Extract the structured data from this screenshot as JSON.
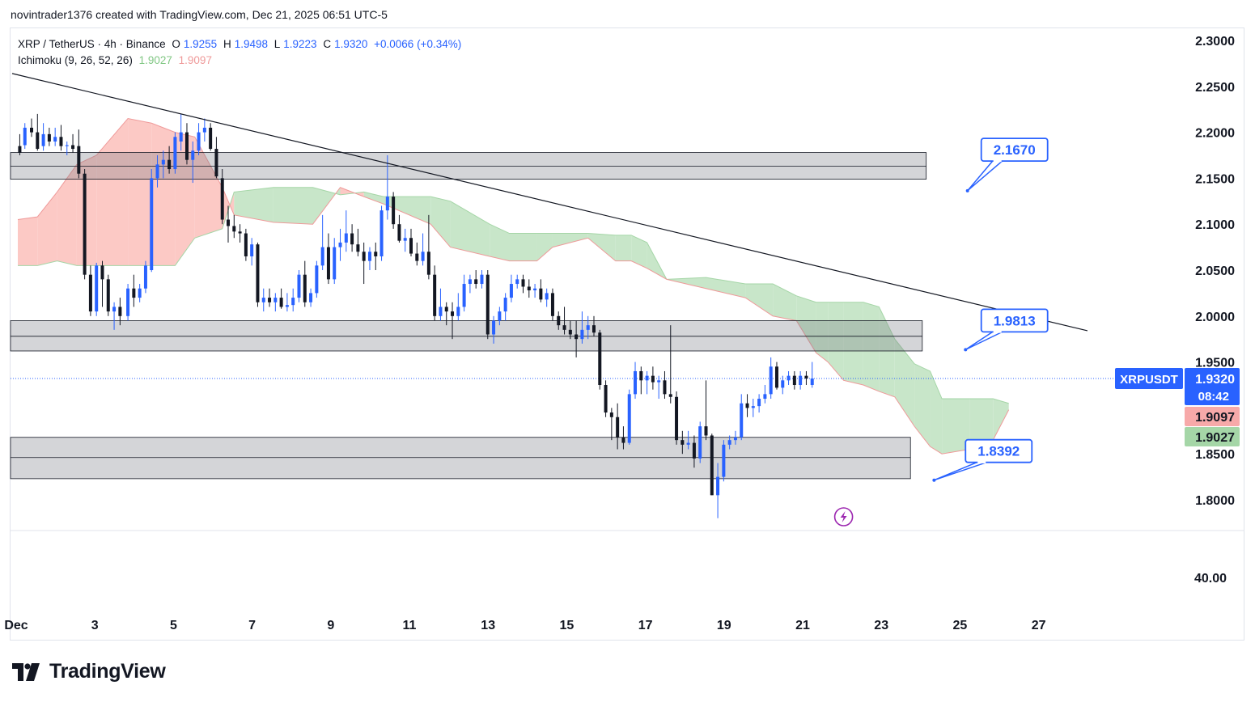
{
  "header": {
    "credit": "novintrader1376 created with TradingView.com, Dec 21, 2025 06:51 UTC-5"
  },
  "legend": {
    "symbol": "XRP / TetherUS · 4h · Binance",
    "o_label": "O",
    "o_val": "1.9255",
    "h_label": "H",
    "h_val": "1.9498",
    "l_label": "L",
    "l_val": "1.9223",
    "c_label": "C",
    "c_val": "1.9320",
    "change": "+0.0066 (+0.34%)",
    "ichimoku_label": "Ichimoku (9, 26, 52, 26)",
    "ichimoku_a": "1.9027",
    "ichimoku_b": "1.9097"
  },
  "brand": {
    "name": "TradingView"
  },
  "colors": {
    "up": "#2962ff",
    "down": "#131722",
    "cloud_bull": "#c8e6c9",
    "cloud_bear": "#fcc9c5",
    "accent": "#2962ff"
  },
  "chart_data": {
    "type": "candlestick",
    "symbol": "XRPUSDT",
    "timeframe": "4h",
    "ylim": [
      1.77,
      2.32
    ],
    "y_ticks": [
      "2.3000",
      "2.2500",
      "2.2000",
      "2.1500",
      "2.1000",
      "2.0500",
      "2.0000",
      "1.9500",
      "1.8500",
      "1.8000"
    ],
    "x_ticks": [
      {
        "label": "Dec",
        "day": 1
      },
      {
        "label": "3",
        "day": 3
      },
      {
        "label": "5",
        "day": 5
      },
      {
        "label": "7",
        "day": 7
      },
      {
        "label": "9",
        "day": 9
      },
      {
        "label": "11",
        "day": 11
      },
      {
        "label": "13",
        "day": 13
      },
      {
        "label": "15",
        "day": 15
      },
      {
        "label": "17",
        "day": 17
      },
      {
        "label": "19",
        "day": 19
      },
      {
        "label": "21",
        "day": 21
      },
      {
        "label": "23",
        "day": 23
      },
      {
        "label": "25",
        "day": 25
      },
      {
        "label": "27",
        "day": 27
      }
    ],
    "lower_pane_tick": "40.00",
    "last_price": {
      "label": "XRPUSDT",
      "value": "1.9320",
      "countdown": "08:42",
      "y": 1.932
    },
    "ichimoku_badges": [
      {
        "value": "1.9097",
        "y": 1.9097,
        "color": "#f7a9a9"
      },
      {
        "value": "1.9027",
        "y": 1.9027,
        "color": "#a5d6a7"
      }
    ],
    "zones": [
      {
        "top": 2.178,
        "bottom": 2.149,
        "mid": 2.163,
        "from_day": 0.0,
        "to_day": 23.1
      },
      {
        "top": 1.995,
        "bottom": 1.962,
        "mid": 1.978,
        "from_day": 0.0,
        "to_day": 23.0
      },
      {
        "top": 1.868,
        "bottom": 1.823,
        "mid": 1.846,
        "from_day": 0.0,
        "to_day": 22.7
      }
    ],
    "trendline": {
      "from": {
        "day": 0.0,
        "y": 2.264
      },
      "to": {
        "day": 27.2,
        "y": 1.984
      }
    },
    "callouts": [
      {
        "text": "2.1670",
        "day": 24.5,
        "y": 2.167,
        "anchor_day": 24.15,
        "anchor_y": 2.154
      },
      {
        "text": "1.9813",
        "day": 24.5,
        "y": 1.981,
        "anchor_day": 24.1,
        "anchor_y": 1.981
      },
      {
        "text": "1.8392",
        "day": 24.1,
        "y": 1.839,
        "anchor_day": 23.3,
        "anchor_y": 1.839
      }
    ],
    "cloud": [
      {
        "day": 0.0,
        "a": 2.055,
        "b": 2.105
      },
      {
        "day": 0.5,
        "a": 2.055,
        "b": 2.108
      },
      {
        "day": 1.0,
        "a": 2.06,
        "b": 2.135
      },
      {
        "day": 1.5,
        "a": 2.055,
        "b": 2.165
      },
      {
        "day": 2.0,
        "a": 2.055,
        "b": 2.175
      },
      {
        "day": 2.8,
        "a": 2.055,
        "b": 2.215
      },
      {
        "day": 3.4,
        "a": 2.055,
        "b": 2.21
      },
      {
        "day": 4.0,
        "a": 2.055,
        "b": 2.2
      },
      {
        "day": 4.5,
        "a": 2.085,
        "b": 2.195
      },
      {
        "day": 5.2,
        "a": 2.095,
        "b": 2.14
      },
      {
        "day": 5.5,
        "a": 2.135,
        "b": 2.11
      },
      {
        "day": 6.5,
        "a": 2.14,
        "b": 2.102
      },
      {
        "day": 7.5,
        "a": 2.14,
        "b": 2.1
      },
      {
        "day": 8.2,
        "a": 2.132,
        "b": 2.14
      },
      {
        "day": 8.8,
        "a": 2.135,
        "b": 2.13
      },
      {
        "day": 9.3,
        "a": 2.13,
        "b": 2.122
      },
      {
        "day": 10.5,
        "a": 2.13,
        "b": 2.1
      },
      {
        "day": 11.0,
        "a": 2.125,
        "b": 2.075
      },
      {
        "day": 12.0,
        "a": 2.1,
        "b": 2.065
      },
      {
        "day": 12.5,
        "a": 2.09,
        "b": 2.06
      },
      {
        "day": 13.2,
        "a": 2.09,
        "b": 2.06
      },
      {
        "day": 13.6,
        "a": 2.09,
        "b": 2.075
      },
      {
        "day": 14.5,
        "a": 2.09,
        "b": 2.085
      },
      {
        "day": 15.2,
        "a": 2.088,
        "b": 2.06
      },
      {
        "day": 15.6,
        "a": 2.088,
        "b": 2.06
      },
      {
        "day": 16.0,
        "a": 2.08,
        "b": 2.052
      },
      {
        "day": 16.5,
        "a": 2.04,
        "b": 2.04
      },
      {
        "day": 17.5,
        "a": 2.042,
        "b": 2.03
      },
      {
        "day": 18.5,
        "a": 2.035,
        "b": 2.02
      },
      {
        "day": 19.2,
        "a": 2.035,
        "b": 2.0
      },
      {
        "day": 19.8,
        "a": 2.022,
        "b": 1.995
      },
      {
        "day": 20.3,
        "a": 2.015,
        "b": 1.96
      },
      {
        "day": 20.6,
        "a": 2.015,
        "b": 1.95
      },
      {
        "day": 21.0,
        "a": 2.015,
        "b": 1.93
      },
      {
        "day": 21.5,
        "a": 2.015,
        "b": 1.925
      },
      {
        "day": 21.9,
        "a": 2.01,
        "b": 1.918
      },
      {
        "day": 22.3,
        "a": 1.975,
        "b": 1.912
      },
      {
        "day": 22.8,
        "a": 1.948,
        "b": 1.88
      },
      {
        "day": 23.2,
        "a": 1.94,
        "b": 1.858
      },
      {
        "day": 23.5,
        "a": 1.91,
        "b": 1.85
      },
      {
        "day": 24.2,
        "a": 1.91,
        "b": 1.855
      },
      {
        "day": 24.8,
        "a": 1.91,
        "b": 1.865
      },
      {
        "day": 25.2,
        "a": 1.905,
        "b": 1.898
      },
      {
        "day": 25.2,
        "a": 1.905,
        "b": 1.898
      }
    ],
    "candles": [
      [
        0.05,
        2.185,
        2.198,
        2.175,
        2.178
      ],
      [
        0.18,
        2.186,
        2.21,
        2.182,
        2.205
      ],
      [
        0.35,
        2.205,
        2.215,
        2.195,
        2.2
      ],
      [
        0.5,
        2.2,
        2.22,
        2.18,
        2.182
      ],
      [
        0.65,
        2.185,
        2.21,
        2.18,
        2.198
      ],
      [
        0.8,
        2.198,
        2.205,
        2.185,
        2.19
      ],
      [
        0.95,
        2.19,
        2.205,
        2.185,
        2.195
      ],
      [
        1.1,
        2.195,
        2.208,
        2.18,
        2.185
      ],
      [
        1.25,
        2.185,
        2.19,
        2.175,
        2.186
      ],
      [
        1.4,
        2.186,
        2.198,
        2.178,
        2.182
      ],
      [
        1.55,
        2.185,
        2.203,
        2.15,
        2.155
      ],
      [
        1.7,
        2.155,
        2.16,
        2.04,
        2.045
      ],
      [
        1.85,
        2.045,
        2.055,
        2.0,
        2.005
      ],
      [
        2.0,
        2.005,
        2.058,
        2.0,
        2.055
      ],
      [
        2.15,
        2.055,
        2.06,
        2.01,
        2.04
      ],
      [
        2.3,
        2.04,
        2.045,
        2.0,
        2.005
      ],
      [
        2.45,
        2.005,
        2.015,
        1.985,
        2.01
      ],
      [
        2.6,
        2.01,
        2.02,
        1.99,
        2.0
      ],
      [
        2.8,
        2.0,
        2.035,
        1.995,
        2.03
      ],
      [
        2.95,
        2.03,
        2.045,
        2.01,
        2.02
      ],
      [
        3.1,
        2.02,
        2.035,
        2.015,
        2.03
      ],
      [
        3.25,
        2.03,
        2.06,
        2.025,
        2.055
      ],
      [
        3.4,
        2.05,
        2.16,
        2.048,
        2.15
      ],
      [
        3.55,
        2.15,
        2.175,
        2.14,
        2.165
      ],
      [
        3.7,
        2.165,
        2.18,
        2.15,
        2.17
      ],
      [
        3.85,
        2.17,
        2.185,
        2.155,
        2.16
      ],
      [
        4.0,
        2.16,
        2.2,
        2.155,
        2.195
      ],
      [
        4.15,
        2.19,
        2.22,
        2.18,
        2.2
      ],
      [
        4.3,
        2.2,
        2.21,
        2.165,
        2.17
      ],
      [
        4.45,
        2.17,
        2.19,
        2.145,
        2.18
      ],
      [
        4.6,
        2.18,
        2.21,
        2.175,
        2.2
      ],
      [
        4.75,
        2.2,
        2.215,
        2.19,
        2.205
      ],
      [
        4.9,
        2.205,
        2.21,
        2.18,
        2.182
      ],
      [
        5.05,
        2.182,
        2.195,
        2.15,
        2.152
      ],
      [
        5.2,
        2.15,
        2.16,
        2.1,
        2.105
      ],
      [
        5.35,
        2.105,
        2.12,
        2.08,
        2.098
      ],
      [
        5.5,
        2.098,
        2.11,
        2.085,
        2.092
      ],
      [
        5.65,
        2.092,
        2.1,
        2.08,
        2.09
      ],
      [
        5.8,
        2.09,
        2.095,
        2.06,
        2.065
      ],
      [
        5.95,
        2.065,
        2.085,
        2.055,
        2.078
      ],
      [
        6.1,
        2.078,
        2.08,
        2.01,
        2.015
      ],
      [
        6.25,
        2.015,
        2.03,
        2.005,
        2.02
      ],
      [
        6.4,
        2.02,
        2.03,
        2.01,
        2.015
      ],
      [
        6.55,
        2.015,
        2.025,
        2.005,
        2.02
      ],
      [
        6.7,
        2.02,
        2.03,
        2.008,
        2.01
      ],
      [
        6.85,
        2.01,
        2.025,
        2.005,
        2.012
      ],
      [
        7.0,
        2.012,
        2.03,
        2.005,
        2.02
      ],
      [
        7.15,
        2.02,
        2.05,
        2.015,
        2.045
      ],
      [
        7.3,
        2.045,
        2.06,
        2.01,
        2.015
      ],
      [
        7.45,
        2.015,
        2.03,
        2.01,
        2.025
      ],
      [
        7.6,
        2.025,
        2.06,
        2.02,
        2.055
      ],
      [
        7.75,
        2.055,
        2.11,
        2.05,
        2.075
      ],
      [
        7.9,
        2.075,
        2.09,
        2.035,
        2.04
      ],
      [
        8.05,
        2.04,
        2.085,
        2.035,
        2.075
      ],
      [
        8.2,
        2.075,
        2.095,
        2.06,
        2.08
      ],
      [
        8.35,
        2.08,
        2.115,
        2.07,
        2.09
      ],
      [
        8.5,
        2.09,
        2.1,
        2.07,
        2.078
      ],
      [
        8.65,
        2.078,
        2.095,
        2.065,
        2.07
      ],
      [
        8.8,
        2.07,
        2.08,
        2.035,
        2.06
      ],
      [
        8.95,
        2.06,
        2.075,
        2.05,
        2.07
      ],
      [
        9.1,
        2.07,
        2.08,
        2.05,
        2.065
      ],
      [
        9.25,
        2.065,
        2.12,
        2.06,
        2.115
      ],
      [
        9.4,
        2.115,
        2.175,
        2.105,
        2.13
      ],
      [
        9.55,
        2.13,
        2.135,
        2.095,
        2.1
      ],
      [
        9.7,
        2.1,
        2.11,
        2.08,
        2.082
      ],
      [
        9.85,
        2.082,
        2.095,
        2.07,
        2.085
      ],
      [
        10.0,
        2.085,
        2.095,
        2.065,
        2.068
      ],
      [
        10.15,
        2.068,
        2.08,
        2.055,
        2.06
      ],
      [
        10.3,
        2.06,
        2.09,
        2.055,
        2.07
      ],
      [
        10.45,
        2.07,
        2.11,
        2.04,
        2.045
      ],
      [
        10.6,
        2.045,
        2.055,
        1.995,
        2.0
      ],
      [
        10.75,
        2.0,
        2.03,
        1.995,
        2.01
      ],
      [
        10.9,
        2.01,
        2.015,
        1.99,
        2.005
      ],
      [
        11.05,
        2.005,
        2.015,
        1.975,
        2.0
      ],
      [
        11.2,
        2.0,
        2.025,
        1.995,
        2.01
      ],
      [
        11.35,
        2.01,
        2.045,
        2.005,
        2.035
      ],
      [
        11.5,
        2.035,
        2.045,
        2.025,
        2.04
      ],
      [
        11.65,
        2.04,
        2.05,
        2.03,
        2.035
      ],
      [
        11.8,
        2.035,
        2.05,
        2.03,
        2.045
      ],
      [
        11.95,
        2.045,
        2.05,
        1.975,
        1.98
      ],
      [
        12.1,
        1.98,
        2.0,
        1.97,
        1.995
      ],
      [
        12.25,
        1.995,
        2.01,
        1.99,
        2.005
      ],
      [
        12.4,
        2.005,
        2.025,
        1.995,
        2.02
      ],
      [
        12.55,
        2.02,
        2.045,
        2.015,
        2.035
      ],
      [
        12.7,
        2.035,
        2.045,
        2.03,
        2.04
      ],
      [
        12.85,
        2.04,
        2.045,
        2.025,
        2.032
      ],
      [
        13.0,
        2.032,
        2.04,
        2.02,
        2.028
      ],
      [
        13.15,
        2.028,
        2.035,
        2.02,
        2.03
      ],
      [
        13.3,
        2.03,
        2.04,
        2.015,
        2.018
      ],
      [
        13.45,
        2.018,
        2.03,
        2.01,
        2.025
      ],
      [
        13.6,
        2.025,
        2.03,
        1.995,
        2.0
      ],
      [
        13.75,
        2.0,
        2.005,
        1.985,
        1.99
      ],
      [
        13.9,
        1.99,
        2.01,
        1.98,
        1.985
      ],
      [
        14.05,
        1.985,
        1.995,
        1.975,
        1.98
      ],
      [
        14.2,
        1.98,
        1.995,
        1.955,
        1.975
      ],
      [
        14.35,
        1.975,
        2.005,
        1.97,
        1.985
      ],
      [
        14.5,
        1.985,
        2.0,
        1.975,
        1.99
      ],
      [
        14.65,
        1.99,
        2.0,
        1.978,
        1.982
      ],
      [
        14.8,
        1.982,
        1.985,
        1.92,
        1.925
      ],
      [
        14.95,
        1.925,
        1.93,
        1.89,
        1.895
      ],
      [
        15.1,
        1.895,
        1.9,
        1.865,
        1.89
      ],
      [
        15.25,
        1.89,
        1.905,
        1.855,
        1.868
      ],
      [
        15.4,
        1.868,
        1.88,
        1.855,
        1.862
      ],
      [
        15.55,
        1.862,
        1.92,
        1.86,
        1.915
      ],
      [
        15.7,
        1.915,
        1.95,
        1.91,
        1.94
      ],
      [
        15.85,
        1.94,
        1.945,
        1.915,
        1.93
      ],
      [
        16.0,
        1.93,
        1.94,
        1.915,
        1.935
      ],
      [
        16.15,
        1.935,
        1.945,
        1.92,
        1.928
      ],
      [
        16.3,
        1.928,
        1.935,
        1.91,
        1.93
      ],
      [
        16.45,
        1.93,
        1.94,
        1.91,
        1.915
      ],
      [
        16.6,
        1.915,
        1.99,
        1.905,
        1.912
      ],
      [
        16.75,
        1.912,
        1.918,
        1.86,
        1.865
      ],
      [
        16.9,
        1.865,
        1.875,
        1.85,
        1.86
      ],
      [
        17.05,
        1.86,
        1.875,
        1.855,
        1.862
      ],
      [
        17.2,
        1.862,
        1.87,
        1.835,
        1.845
      ],
      [
        17.35,
        1.845,
        1.885,
        1.84,
        1.88
      ],
      [
        17.5,
        1.88,
        1.93,
        1.865,
        1.87
      ],
      [
        17.65,
        1.87,
        1.872,
        1.805,
        1.805
      ],
      [
        17.8,
        1.805,
        1.84,
        1.78,
        1.825
      ],
      [
        17.95,
        1.825,
        1.865,
        1.82,
        1.86
      ],
      [
        18.1,
        1.86,
        1.87,
        1.855,
        1.865
      ],
      [
        18.25,
        1.865,
        1.875,
        1.86,
        1.868
      ],
      [
        18.4,
        1.868,
        1.915,
        1.865,
        1.905
      ],
      [
        18.55,
        1.905,
        1.915,
        1.89,
        1.9
      ],
      [
        18.7,
        1.9,
        1.91,
        1.89,
        1.902
      ],
      [
        18.85,
        1.902,
        1.915,
        1.895,
        1.91
      ],
      [
        19.0,
        1.91,
        1.925,
        1.905,
        1.915
      ],
      [
        19.15,
        1.915,
        1.955,
        1.91,
        1.945
      ],
      [
        19.3,
        1.945,
        1.95,
        1.92,
        1.922
      ],
      [
        19.45,
        1.922,
        1.935,
        1.915,
        1.93
      ],
      [
        19.6,
        1.93,
        1.94,
        1.925,
        1.935
      ],
      [
        19.75,
        1.935,
        1.94,
        1.92,
        1.925
      ],
      [
        19.9,
        1.925,
        1.94,
        1.92,
        1.935
      ],
      [
        20.05,
        1.935,
        1.94,
        1.925,
        1.932
      ],
      [
        20.2,
        1.925,
        1.95,
        1.922,
        1.932
      ]
    ]
  }
}
